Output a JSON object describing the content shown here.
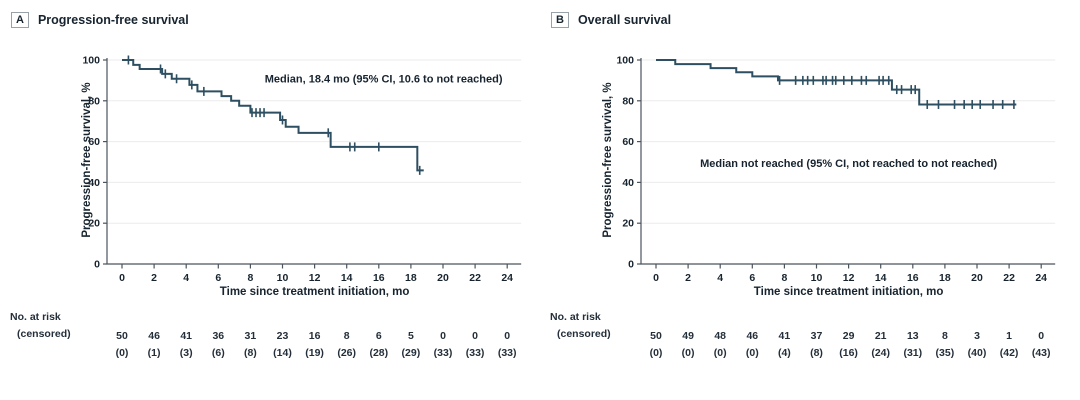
{
  "chart_data": [
    {
      "type": "line",
      "km_style": "step",
      "panel_label": "A",
      "title": "Progression-free survival",
      "xlabel": "Time since treatment initiation, mo",
      "ylabel": "Progression-free survival, %",
      "annotation": {
        "text": "Median, 18.4 mo (95% CI, 10.6 to not reached)",
        "x_mo": 16.3,
        "y_pct": 91
      },
      "xlim": [
        0,
        24
      ],
      "ylim": [
        0,
        100
      ],
      "xticks": [
        0,
        2,
        4,
        6,
        8,
        10,
        12,
        14,
        16,
        18,
        20,
        22,
        24
      ],
      "yticks": [
        0,
        20,
        40,
        60,
        80,
        100
      ],
      "grid": "horizontal",
      "legend_position": "none",
      "line_color": "#2d4f61",
      "steps": [
        [
          0,
          100
        ],
        [
          0.7,
          97.6
        ],
        [
          1.1,
          95.6
        ],
        [
          2.5,
          93.2
        ],
        [
          3.1,
          90.8
        ],
        [
          4.2,
          87.8
        ],
        [
          4.7,
          84.6
        ],
        [
          6.2,
          82.3
        ],
        [
          6.8,
          80.0
        ],
        [
          7.3,
          77.6
        ],
        [
          8.0,
          74.2
        ],
        [
          9.85,
          70.6
        ],
        [
          10.2,
          67.3
        ],
        [
          11.0,
          64.3
        ],
        [
          13.0,
          57.4
        ],
        [
          18.4,
          45.9
        ]
      ],
      "end_time": 18.8,
      "censor_marks": [
        [
          0.4,
          100
        ],
        [
          2.4,
          95.6
        ],
        [
          2.7,
          93.2
        ],
        [
          3.4,
          90.8
        ],
        [
          4.35,
          87.8
        ],
        [
          5.1,
          84.6
        ],
        [
          8.1,
          74.2
        ],
        [
          8.35,
          74.2
        ],
        [
          8.6,
          74.2
        ],
        [
          8.85,
          74.2
        ],
        [
          10.0,
          70.6
        ],
        [
          12.85,
          64.3
        ],
        [
          14.2,
          57.4
        ],
        [
          14.5,
          57.4
        ],
        [
          16.0,
          57.4
        ],
        [
          18.55,
          45.9
        ]
      ],
      "at_risk": {
        "label": "No. at risk",
        "sub_label": "(censored)",
        "times": [
          0,
          2,
          4,
          6,
          8,
          10,
          12,
          14,
          16,
          18,
          20,
          22,
          24
        ],
        "n": [
          50,
          46,
          41,
          36,
          31,
          23,
          16,
          8,
          6,
          5,
          0,
          0,
          0
        ],
        "censored": [
          0,
          1,
          3,
          6,
          8,
          14,
          19,
          26,
          28,
          29,
          33,
          33,
          33
        ]
      }
    },
    {
      "type": "line",
      "km_style": "step",
      "panel_label": "B",
      "title": "Overall survival",
      "xlabel": "Time since treatment initiation, mo",
      "ylabel": "Progression-free survival, %",
      "annotation": {
        "text": "Median not reached (95% CI, not reached to not reached)",
        "x_mo": 12.0,
        "y_pct": 49.5
      },
      "xlim": [
        0,
        24
      ],
      "ylim": [
        0,
        100
      ],
      "xticks": [
        0,
        2,
        4,
        6,
        8,
        10,
        12,
        14,
        16,
        18,
        20,
        22,
        24
      ],
      "yticks": [
        0,
        20,
        40,
        60,
        80,
        100
      ],
      "grid": "horizontal",
      "legend_position": "none",
      "line_color": "#2d4f61",
      "steps": [
        [
          0,
          100
        ],
        [
          1.2,
          98
        ],
        [
          3.4,
          96
        ],
        [
          5.0,
          94
        ],
        [
          6.0,
          92
        ],
        [
          7.6,
          90
        ],
        [
          14.7,
          85.5
        ],
        [
          16.4,
          78.2
        ]
      ],
      "end_time": 22.45,
      "censor_marks": [
        [
          7.7,
          90
        ],
        [
          8.7,
          90
        ],
        [
          9.15,
          90
        ],
        [
          9.45,
          90
        ],
        [
          9.8,
          90
        ],
        [
          10.4,
          90
        ],
        [
          10.6,
          90
        ],
        [
          11.0,
          90
        ],
        [
          11.2,
          90
        ],
        [
          11.7,
          90
        ],
        [
          12.2,
          90
        ],
        [
          12.8,
          90
        ],
        [
          13.1,
          90
        ],
        [
          13.9,
          90
        ],
        [
          14.15,
          90
        ],
        [
          14.5,
          90
        ],
        [
          15.0,
          85.5
        ],
        [
          15.3,
          85.5
        ],
        [
          15.9,
          85.5
        ],
        [
          16.15,
          85.5
        ],
        [
          16.9,
          78.2
        ],
        [
          17.6,
          78.2
        ],
        [
          18.6,
          78.2
        ],
        [
          19.2,
          78.2
        ],
        [
          19.7,
          78.2
        ],
        [
          20.2,
          78.2
        ],
        [
          21.0,
          78.2
        ],
        [
          21.6,
          78.2
        ],
        [
          22.3,
          78.2
        ]
      ],
      "at_risk": {
        "label": "No. at risk",
        "sub_label": "(censored)",
        "times": [
          0,
          2,
          4,
          6,
          8,
          10,
          12,
          14,
          16,
          18,
          20,
          22,
          24
        ],
        "n": [
          50,
          49,
          48,
          46,
          41,
          37,
          29,
          21,
          13,
          8,
          3,
          1,
          0
        ],
        "censored": [
          0,
          0,
          0,
          0,
          4,
          8,
          16,
          24,
          31,
          35,
          40,
          42,
          43
        ]
      }
    }
  ],
  "colors": {
    "curve": "#2d4f61",
    "axis": "#4a545d",
    "gridline": "#ebebeb",
    "text": "#17242f"
  }
}
